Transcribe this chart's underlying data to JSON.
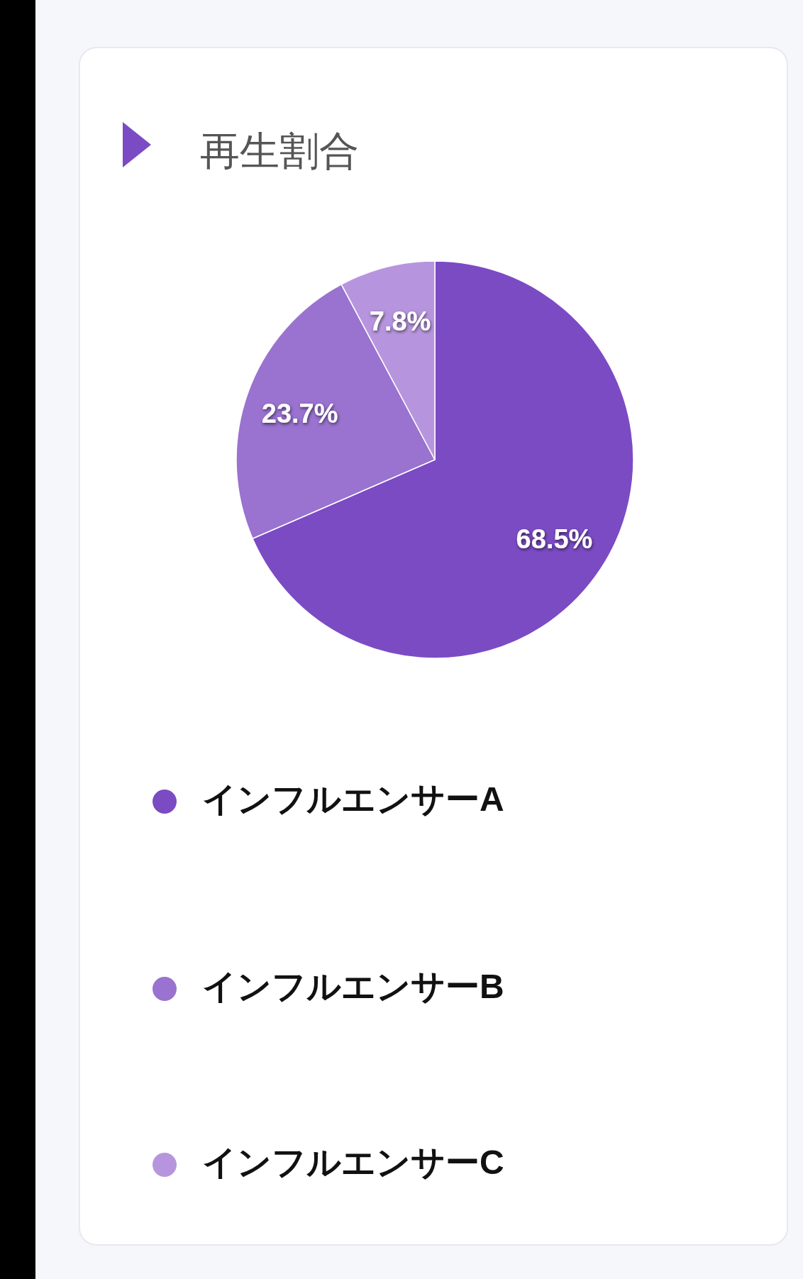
{
  "chart_data": {
    "type": "pie",
    "title": "再生割合",
    "categories": [
      "インフルエンサーA",
      "インフルエンサーB",
      "インフルエンサーC"
    ],
    "values": [
      68.5,
      23.7,
      7.8
    ],
    "colors": [
      "#7b4bc4",
      "#9a72d0",
      "#b795de"
    ],
    "value_labels": [
      "68.5%",
      "23.7%",
      "7.8%"
    ],
    "legend": "bottom"
  }
}
